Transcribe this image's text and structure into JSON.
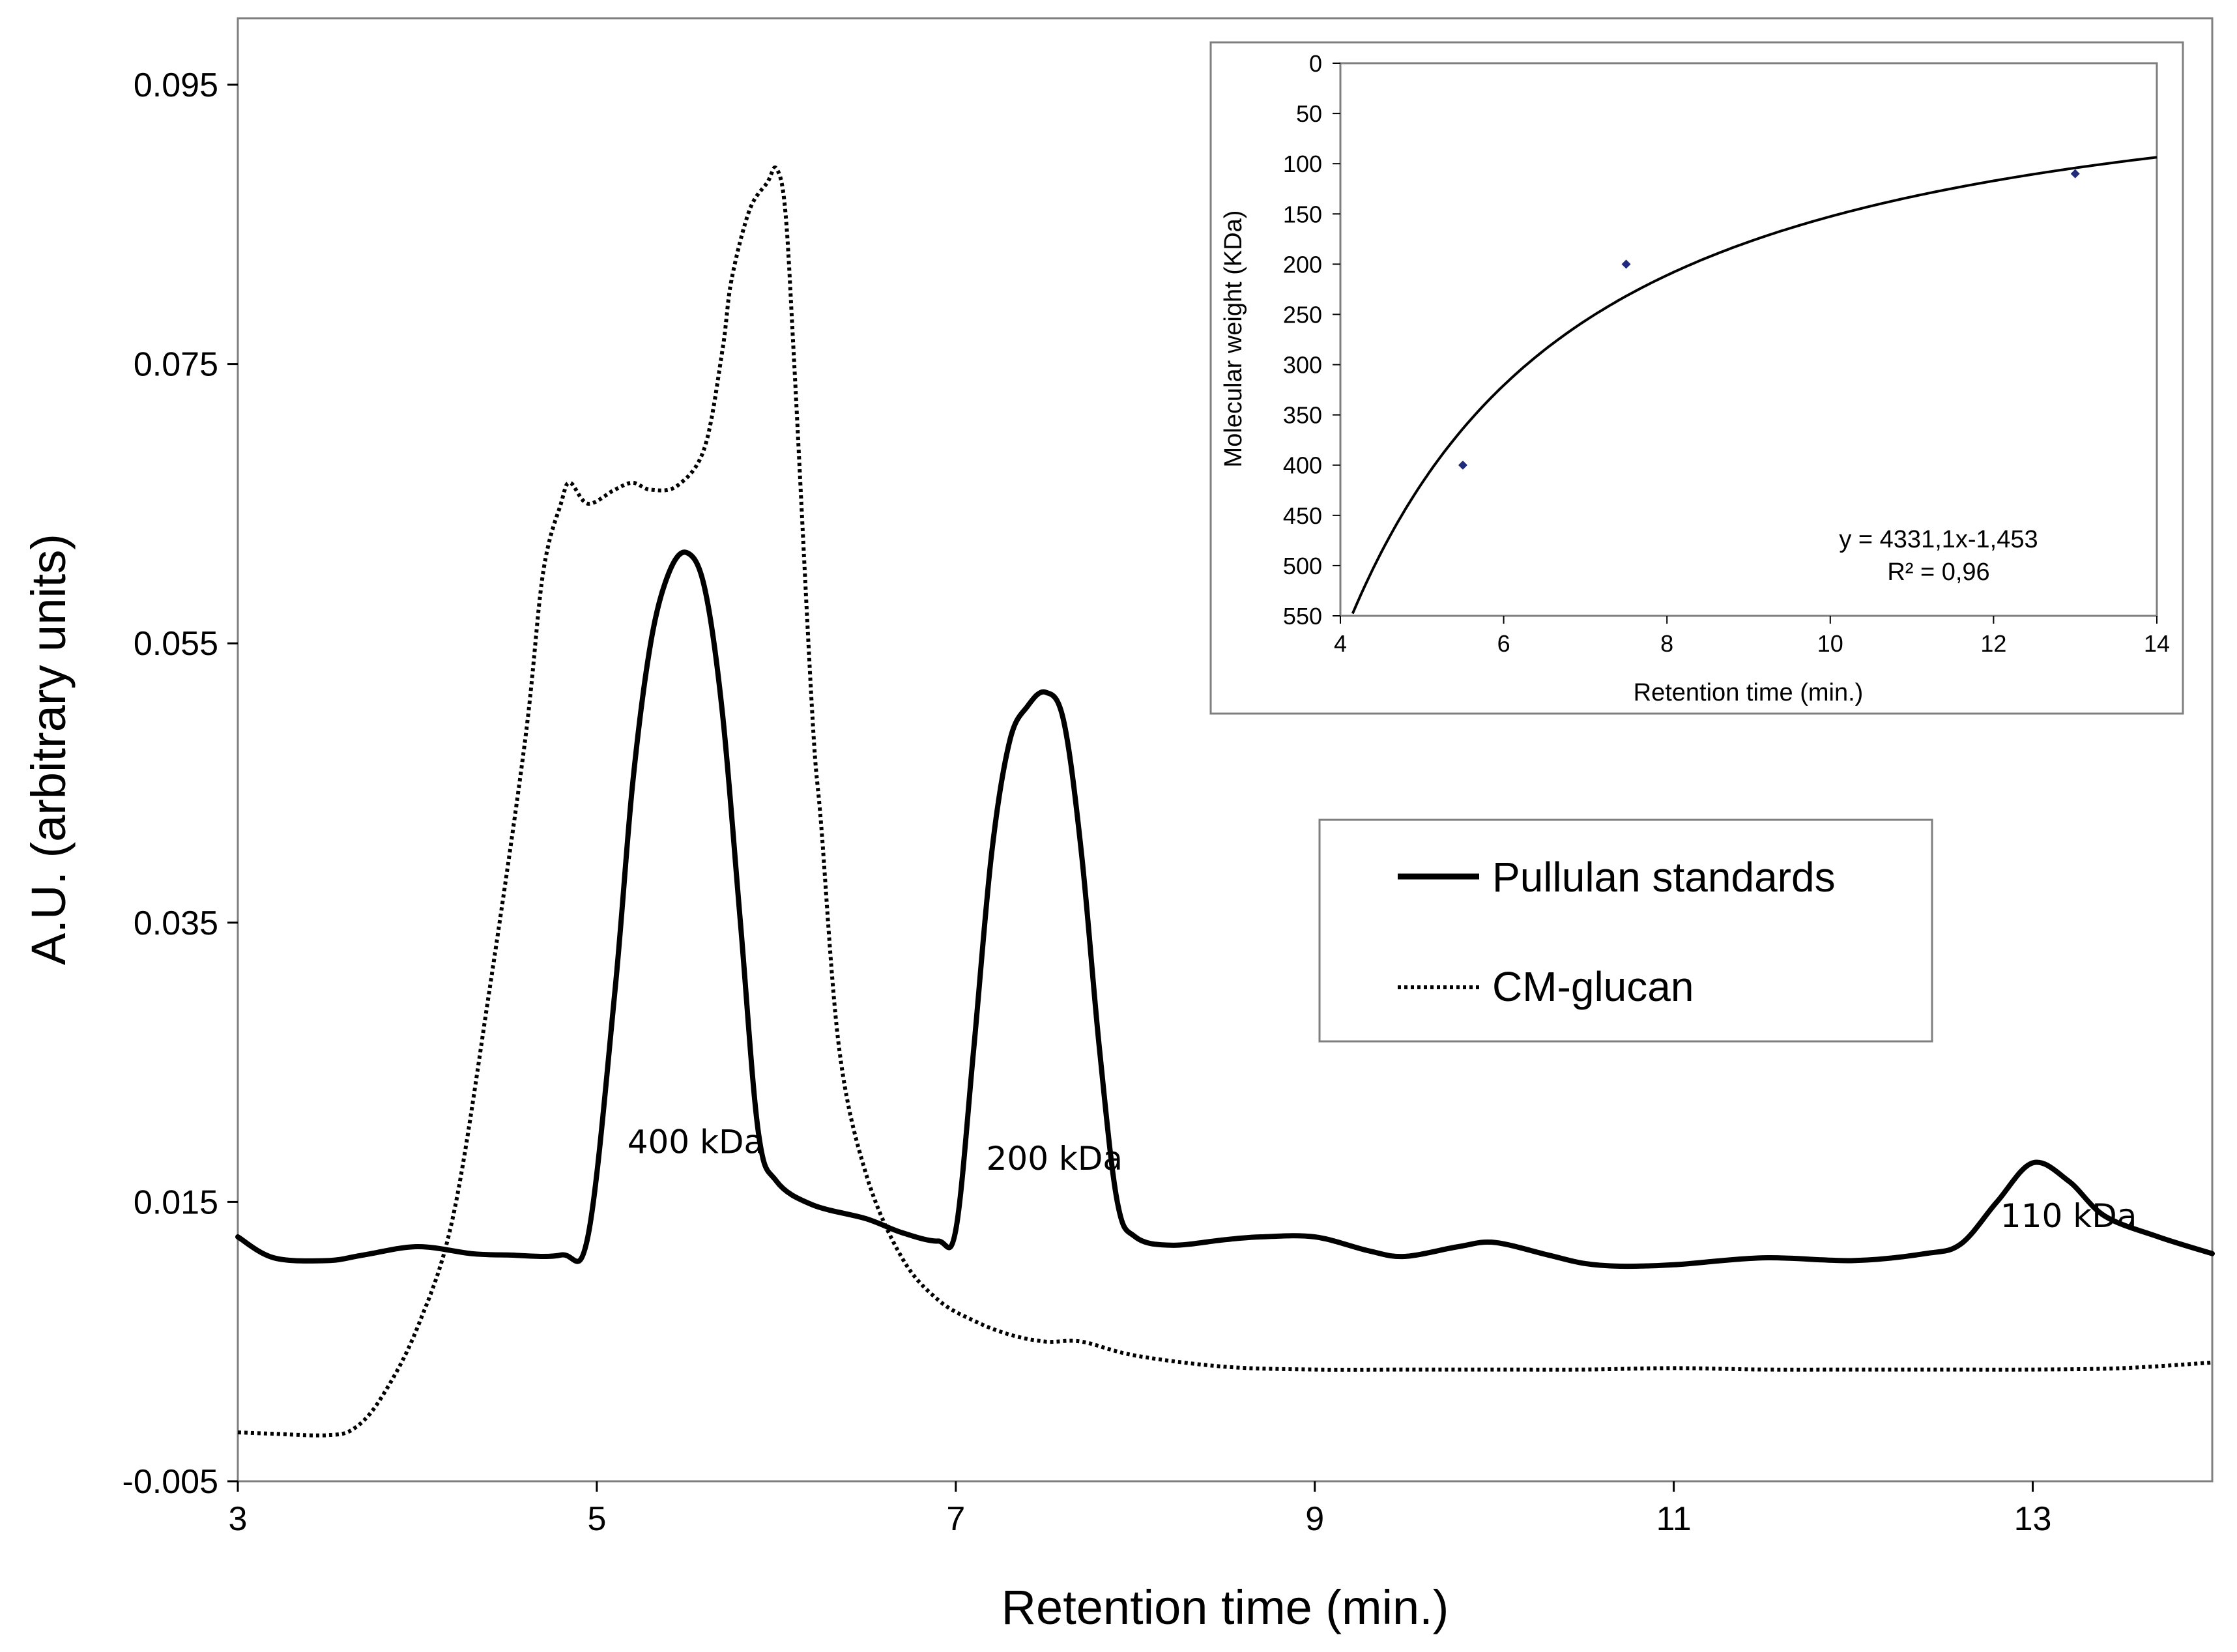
{
  "chart_data": [
    {
      "type": "line",
      "title": "",
      "xlabel": "Retention time (min.)",
      "ylabel": "A.U. (arbitrary units)",
      "xlim": [
        3,
        14
      ],
      "ylim": [
        -0.005,
        0.1
      ],
      "xticks": [
        "3",
        "5",
        "7",
        "9",
        "11",
        "13"
      ],
      "xtick_values": [
        3,
        5,
        7,
        9,
        11,
        13
      ],
      "yticks": [
        "-0.005",
        "0.015",
        "0.035",
        "0.055",
        "0.075",
        "0.095"
      ],
      "ytick_values": [
        -0.005,
        0.015,
        0.035,
        0.055,
        0.075,
        0.095
      ],
      "grid": false,
      "legend_position": "right-middle",
      "series": [
        {
          "name": "Pullulan standards",
          "style": "solid",
          "color": "#000000",
          "x": [
            3.0,
            3.2,
            3.5,
            3.7,
            4.0,
            4.3,
            4.5,
            4.8,
            4.95,
            5.1,
            5.2,
            5.3,
            5.4,
            5.5,
            5.6,
            5.7,
            5.8,
            5.9,
            6.0,
            6.2,
            6.5,
            6.7,
            6.9,
            7.0,
            7.1,
            7.2,
            7.3,
            7.4,
            7.5,
            7.6,
            7.7,
            7.8,
            7.9,
            8.0,
            8.2,
            8.5,
            8.7,
            9.0,
            9.3,
            9.5,
            9.8,
            10.0,
            10.3,
            10.5,
            10.7,
            11.0,
            11.5,
            12.0,
            12.4,
            12.6,
            12.8,
            13.0,
            13.2,
            13.4,
            13.7,
            14.0
          ],
          "y": [
            0.0125,
            0.011,
            0.0108,
            0.0112,
            0.0118,
            0.0113,
            0.0112,
            0.0112,
            0.0125,
            0.03,
            0.045,
            0.055,
            0.06,
            0.0615,
            0.059,
            0.05,
            0.035,
            0.02,
            0.0165,
            0.0148,
            0.0138,
            0.0128,
            0.0122,
            0.013,
            0.026,
            0.04,
            0.048,
            0.0505,
            0.0515,
            0.0495,
            0.04,
            0.026,
            0.015,
            0.0125,
            0.0119,
            0.0123,
            0.0125,
            0.0125,
            0.0115,
            0.0111,
            0.0118,
            0.0121,
            0.0112,
            0.0106,
            0.0104,
            0.0105,
            0.011,
            0.0108,
            0.0113,
            0.012,
            0.015,
            0.0178,
            0.0165,
            0.014,
            0.0125,
            0.0113
          ]
        },
        {
          "name": "CM-glucan",
          "style": "dotted",
          "color": "#000000",
          "x": [
            3.0,
            3.2,
            3.5,
            3.65,
            3.8,
            4.0,
            4.2,
            4.4,
            4.6,
            4.7,
            4.8,
            4.85,
            4.95,
            5.1,
            5.2,
            5.3,
            5.45,
            5.6,
            5.7,
            5.75,
            5.85,
            5.95,
            6.0,
            6.05,
            6.1,
            6.2,
            6.25,
            6.35,
            6.5,
            6.7,
            6.9,
            7.1,
            7.3,
            7.5,
            7.7,
            8.0,
            8.5,
            9.0,
            9.5,
            10.0,
            10.5,
            11.0,
            11.5,
            12.0,
            12.5,
            13.0,
            13.5,
            14.0
          ],
          "y": [
            -0.0015,
            -0.0016,
            -0.0017,
            -0.0012,
            0.001,
            0.006,
            0.014,
            0.03,
            0.048,
            0.06,
            0.065,
            0.0665,
            0.065,
            0.066,
            0.0665,
            0.066,
            0.0663,
            0.069,
            0.076,
            0.081,
            0.086,
            0.088,
            0.089,
            0.086,
            0.075,
            0.05,
            0.042,
            0.026,
            0.017,
            0.011,
            0.008,
            0.0065,
            0.0055,
            0.005,
            0.005,
            0.004,
            0.0032,
            0.003,
            0.003,
            0.003,
            0.003,
            0.0031,
            0.003,
            0.003,
            0.003,
            0.003,
            0.0031,
            0.0035
          ]
        }
      ],
      "annotations": [
        {
          "text": "400 kDa",
          "x": 5.55,
          "y": 0.0185
        },
        {
          "text": "200 kDa",
          "x": 7.55,
          "y": 0.0173
        },
        {
          "text": "110 kDa",
          "x": 13.2,
          "y": 0.0132
        }
      ]
    },
    {
      "type": "scatter",
      "title": "",
      "xlabel": "Retention time (min.)",
      "ylabel": "Molecular weight (KDa)",
      "xlim": [
        4,
        14
      ],
      "ylim": [
        0,
        550
      ],
      "y_inverted": true,
      "xticks": [
        "4",
        "6",
        "8",
        "10",
        "12",
        "14"
      ],
      "xtick_values": [
        4,
        6,
        8,
        10,
        12,
        14
      ],
      "yticks": [
        "0",
        "50",
        "100",
        "150",
        "200",
        "250",
        "300",
        "350",
        "400",
        "450",
        "500",
        "550"
      ],
      "ytick_values": [
        0,
        50,
        100,
        150,
        200,
        250,
        300,
        350,
        400,
        450,
        500,
        550
      ],
      "grid": false,
      "series": [
        {
          "name": "",
          "marker": "diamond",
          "color": "#1f2a7a",
          "x": [
            5.5,
            7.5,
            13.0
          ],
          "y": [
            400,
            200,
            110
          ]
        }
      ],
      "trendline": {
        "type": "power",
        "a": 4331.1,
        "b": -1.453,
        "equation": "y = 4331,1x-1,453",
        "r2": "R² = 0,96",
        "color": "#000000"
      }
    }
  ],
  "legend": {
    "items": [
      {
        "label": "Pullulan standards",
        "style": "solid"
      },
      {
        "label": "CM-glucan",
        "style": "dotted"
      }
    ]
  }
}
